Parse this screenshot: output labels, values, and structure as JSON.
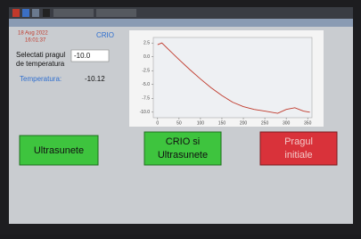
{
  "status": {
    "date": "18 Aug 2022",
    "time": "16:01:37",
    "mode": "CRIO"
  },
  "threshold": {
    "label_line1": "Selectati pragul",
    "label_line2": "de temperatura",
    "input": "-10.0"
  },
  "reading": {
    "label": "Temperatura:",
    "value": "-10.12"
  },
  "chart_data": {
    "type": "line",
    "x": [
      0,
      10,
      30,
      50,
      75,
      100,
      125,
      150,
      175,
      200,
      225,
      250,
      280,
      300,
      320,
      340,
      355
    ],
    "series": [
      {
        "color": "#c0392b",
        "values": [
          2.2,
          2.5,
          1.0,
          -0.5,
          -2.3,
          -4.0,
          -5.6,
          -7.0,
          -8.2,
          -9.0,
          -9.5,
          -9.8,
          -10.2,
          -9.5,
          -9.2,
          -9.8,
          -10.0
        ]
      }
    ],
    "xlim": [
      -10,
      360
    ],
    "ylim": [
      -11,
      3.5
    ],
    "xticks": [
      0,
      50,
      100,
      150,
      200,
      250,
      300,
      350
    ],
    "yticks": [
      {
        "value": 2.5,
        "label": "2.5"
      },
      {
        "value": 0,
        "label": "0.0"
      },
      {
        "value": -2.5,
        "label": "-2.5"
      },
      {
        "value": -5,
        "label": "-5.0"
      },
      {
        "value": -7.5,
        "label": "-7.5"
      },
      {
        "value": -10,
        "label": "-10.0"
      }
    ]
  },
  "buttons": [
    "Ultrasunete",
    "CRIO si",
    "Ultrasunete",
    "Pragul",
    "initiale"
  ]
}
